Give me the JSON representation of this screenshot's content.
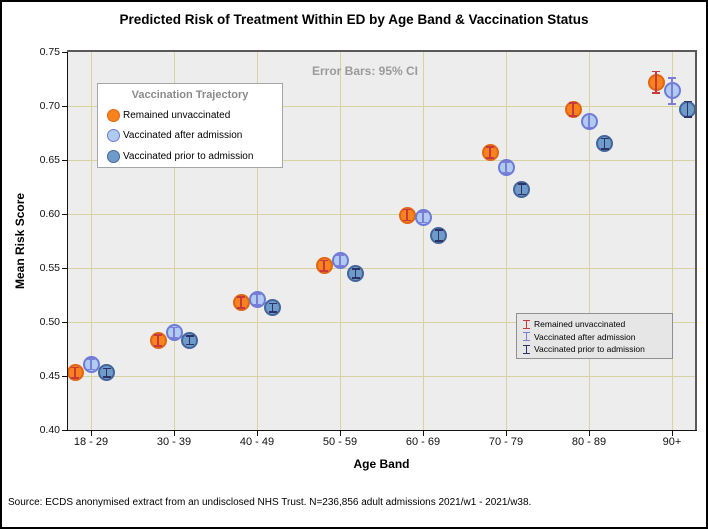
{
  "title": "Predicted Risk of Treatment Within ED by Age Band & Vaccination Status",
  "annotation": "Error Bars: 95% CI",
  "axes": {
    "x_label": "Age Band",
    "y_label": "Mean Risk Score"
  },
  "legend": {
    "title": "Vaccination Trajectory"
  },
  "source_note": "Source: ECDS anonymised extract from an undisclosed NHS Trust. N=236,856 adult admissions 2021/w1 - 2021/w38.",
  "colors": {
    "plot_background": "#EDEDED",
    "gridline": "#D8D2A0",
    "annotation_text": "#9A9A9A",
    "legend_title_text": "#8A8A8A",
    "errorbar_legend_background": "#E6E6E6"
  },
  "chart_data": {
    "type": "scatter",
    "title": "Predicted Risk of Treatment Within ED by Age Band & Vaccination Status",
    "xlabel": "Age Band",
    "ylabel": "Mean Risk Score",
    "categories": [
      "18 - 29",
      "30 - 39",
      "40 - 49",
      "50 - 59",
      "60 - 69",
      "70 - 79",
      "80 - 89",
      "90+"
    ],
    "ylim": [
      0.4,
      0.75
    ],
    "ytick_step": 0.05,
    "grid": true,
    "error_bars": "95% CI",
    "legend_title": "Vaccination Trajectory",
    "legend_position": "upper-left",
    "errorbar_legend_position": "lower-right",
    "series": [
      {
        "name": "Remained unvaccinated",
        "marker_fill": "#F8821C",
        "marker_border": "#E06612",
        "errorbar_color": "#C7383F",
        "values": [
          0.453,
          0.483,
          0.518,
          0.552,
          0.599,
          0.657,
          0.697,
          0.722
        ],
        "ci95_halfwidth": [
          0.005,
          0.005,
          0.005,
          0.005,
          0.005,
          0.005,
          0.006,
          0.01
        ]
      },
      {
        "name": "Vaccinated after admission",
        "marker_fill": "#AFCBF0",
        "marker_border": "#6D7BD8",
        "errorbar_color": "#7D7DD8",
        "values": [
          0.461,
          0.49,
          0.521,
          0.557,
          0.597,
          0.643,
          0.686,
          0.714
        ],
        "ci95_halfwidth": [
          0.005,
          0.005,
          0.005,
          0.005,
          0.005,
          0.005,
          0.006,
          0.012
        ]
      },
      {
        "name": "Vaccinated prior to admission",
        "marker_fill": "#6F9BCB",
        "marker_border": "#44659B",
        "errorbar_color": "#2D3366",
        "values": [
          0.453,
          0.483,
          0.513,
          0.545,
          0.58,
          0.623,
          0.665,
          0.697
        ],
        "ci95_halfwidth": [
          0.004,
          0.004,
          0.004,
          0.004,
          0.005,
          0.005,
          0.005,
          0.007
        ]
      }
    ]
  }
}
